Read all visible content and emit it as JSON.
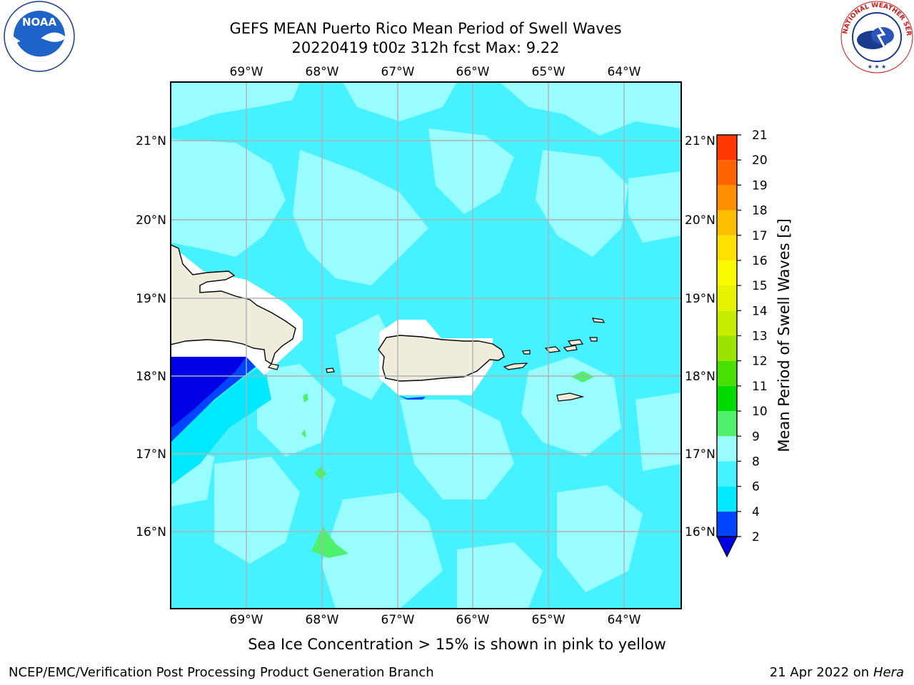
{
  "title": {
    "line1": "GEFS MEAN Puerto Rico Mean Period of Swell Waves",
    "line2": "20220419 t00z 312h fcst   Max: 9.22"
  },
  "map": {
    "lon_ticks": [
      "69°W",
      "68°W",
      "67°W",
      "66°W",
      "65°W",
      "64°W"
    ],
    "lat_ticks": [
      "21°N",
      "20°N",
      "19°N",
      "18°N",
      "17°N",
      "16°N"
    ],
    "ocean_color": "#46f2ff",
    "land_color": "#efecdc"
  },
  "colorbar": {
    "label": "Mean Period of Swell Waves [s]",
    "ticks": [
      "2",
      "4",
      "6",
      "8",
      "9",
      "10",
      "11",
      "12",
      "13",
      "14",
      "15",
      "16",
      "17",
      "18",
      "19",
      "20",
      "21"
    ],
    "colors": [
      "#0044ff",
      "#00e9ff",
      "#46f2ff",
      "#99fdff",
      "#4ef06c",
      "#00dc00",
      "#48e000",
      "#9ae400",
      "#c8ec00",
      "#e5f200",
      "#fbf900",
      "#ffe000",
      "#ffbd00",
      "#ff8f00",
      "#ff6400",
      "#ff3700",
      "#ff1200"
    ],
    "under_color": "#0000e5"
  },
  "annotation": "Sea Ice Concentration > 15% is shown in pink to yellow",
  "footer": {
    "left": "NCEP/EMC/Verification Post Processing Product Generation Branch",
    "right_date": "21 Apr 2022 on ",
    "right_host": "Hera"
  },
  "logos": {
    "noaa_text": "NOAA",
    "nws_text": "NATIONAL WEATHER SERVICE"
  }
}
